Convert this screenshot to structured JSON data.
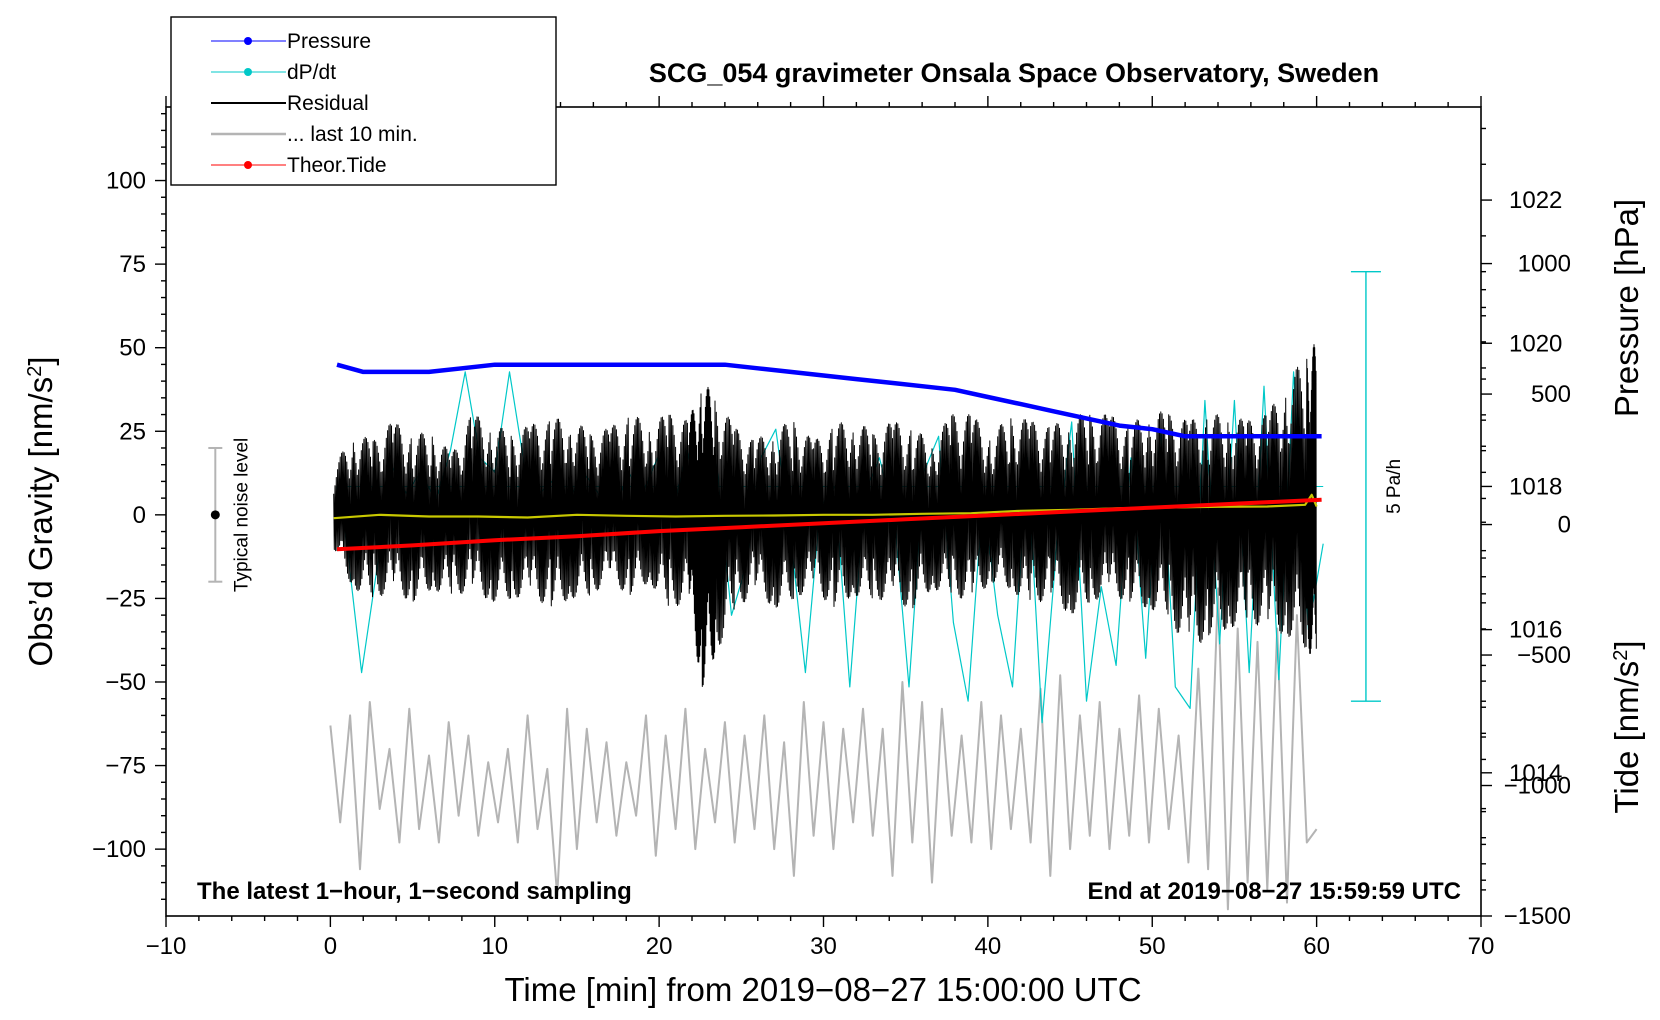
{
  "chart_data": {
    "type": "line",
    "title": "SCG_054 gravimeter Onsala Space Observatory, Sweden",
    "xlabel": "Time [min] from 2019−08−27 15:00:00 UTC",
    "ylabel_left": "Obs’d Gravity [nm/s²]",
    "ylabel_left_parts": {
      "base": "Obs’d Gravity [nm/s",
      "sup": "2",
      "close": "]"
    },
    "ylabel_right_pressure": "Pressure [hPa]",
    "ylabel_right_tide": "Tide [nm/s²]",
    "ylabel_right_tide_parts": {
      "base": "Tide [nm/s",
      "sup": "2",
      "close": "]"
    },
    "xlim": [
      -10,
      70
    ],
    "ylim": [
      -120,
      122
    ],
    "pressure_ylim": [
      1012.0,
      1023.3
    ],
    "tide_ylim": [
      -1500,
      1600
    ],
    "xticks": [
      -10,
      0,
      10,
      20,
      30,
      40,
      50,
      60,
      70
    ],
    "xtick_labels": [
      "−10",
      "0",
      "10",
      "20",
      "30",
      "40",
      "50",
      "60",
      "70"
    ],
    "yticks_left": [
      100,
      75,
      50,
      25,
      0,
      -25,
      -50,
      -75,
      -100
    ],
    "ytick_labels_left": [
      "100",
      "75",
      "50",
      "25",
      "0",
      "−25",
      "−50",
      "−75",
      "−100"
    ],
    "yticks_pressure": [
      1022,
      1020,
      1018,
      1016,
      1014
    ],
    "ytick_labels_pressure": [
      "1022",
      "1020",
      "1018",
      "1016",
      "1014"
    ],
    "yticks_tide": [
      1000,
      500,
      0,
      -500,
      -1000,
      -1500
    ],
    "ytick_labels_tide": [
      "1000",
      "500",
      "0",
      "−500",
      "−1000",
      "−1500"
    ],
    "legend_position": "top-left",
    "legend": [
      {
        "label": "Pressure",
        "color": "#0000ff",
        "marker": true,
        "width": 1
      },
      {
        "label": "dP/dt",
        "color": "#00c8c8",
        "marker": true,
        "width": 1
      },
      {
        "label": "Residual",
        "color": "#000000",
        "marker": false,
        "width": 2
      },
      {
        "label": "... last 10 min.",
        "color": "#b4b4b4",
        "marker": false,
        "width": 2.5
      },
      {
        "label": "Theor.Tide",
        "color": "#ff0000",
        "marker": true,
        "width": 1
      }
    ],
    "notes": {
      "bottom_left": "The latest 1−hour, 1−second sampling",
      "bottom_right": "End at 2019−08−27 15:59:59 UTC",
      "noise_level_label": "Typical noise level",
      "scale_bar_label": "5 Pa/h"
    },
    "noise_level": {
      "x": -7,
      "center": 0,
      "half_range": 20
    },
    "scale_bar": {
      "x": 63,
      "top_hpa": 1021.0,
      "bottom_hpa": 1015.0,
      "rate_pa_per_h": 5
    },
    "series": [
      {
        "name": "Pressure",
        "axis": "pressure",
        "color": "#0000ff",
        "x": [
          0.4,
          2,
          4,
          6,
          8,
          10,
          12,
          14,
          16,
          18,
          20,
          22,
          24,
          26,
          28,
          30,
          32,
          34,
          36,
          38,
          40,
          42,
          44,
          46,
          48,
          50,
          52,
          54,
          56,
          58,
          60.3
        ],
        "y": [
          1019.7,
          1019.6,
          1019.6,
          1019.6,
          1019.65,
          1019.7,
          1019.7,
          1019.7,
          1019.7,
          1019.7,
          1019.7,
          1019.7,
          1019.7,
          1019.65,
          1019.6,
          1019.55,
          1019.5,
          1019.45,
          1019.4,
          1019.35,
          1019.25,
          1019.15,
          1019.05,
          1018.95,
          1018.85,
          1018.8,
          1018.7,
          1018.7,
          1018.7,
          1018.7,
          1018.7
        ]
      },
      {
        "name": "dP/dt",
        "axis": "pressure",
        "color": "#00c8c8",
        "baseline": 1018.0,
        "x": [
          0.4,
          1.0,
          1.9,
          2.8,
          3.7,
          4.6,
          5.5,
          6.4,
          7.3,
          8.2,
          9.1,
          10.0,
          10.9,
          11.8,
          12.7,
          13.6,
          14.5,
          15.4,
          16.3,
          17.2,
          18.1,
          19.0,
          19.9,
          20.8,
          21.7,
          22.6,
          23.5,
          24.4,
          25.3,
          26.2,
          27.1,
          28.0,
          28.9,
          29.8,
          30.7,
          31.6,
          32.5,
          33.4,
          34.3,
          35.2,
          36.1,
          37.0,
          37.9,
          38.8,
          39.7,
          40.6,
          41.5,
          42.4,
          43.3,
          44.2,
          45.1,
          46.0,
          46.9,
          47.8,
          48.7,
          49.6,
          50.5,
          51.4,
          52.3,
          53.2,
          54.1,
          55.0,
          55.9,
          56.8,
          57.7,
          58.6,
          59.5,
          60.4
        ],
        "y": [
          1018.0,
          1017.2,
          1015.4,
          1016.8,
          1018.3,
          1017.9,
          1018.2,
          1017.8,
          1018.5,
          1019.6,
          1018.4,
          1018.2,
          1019.6,
          1018.3,
          1017.9,
          1018.1,
          1017.8,
          1018.2,
          1017.9,
          1017.6,
          1018.2,
          1017.9,
          1018.4,
          1017.6,
          1018.5,
          1017.5,
          1018.3,
          1016.2,
          1016.9,
          1018.4,
          1018.8,
          1017.3,
          1015.4,
          1017.7,
          1018.0,
          1015.2,
          1017.9,
          1018.4,
          1017.6,
          1015.2,
          1018.2,
          1018.7,
          1016.1,
          1015.0,
          1017.9,
          1016.2,
          1015.2,
          1018.4,
          1014.7,
          1017.2,
          1018.9,
          1015.0,
          1016.6,
          1015.5,
          1018.4,
          1015.6,
          1018.8,
          1015.2,
          1014.9,
          1019.2,
          1015.8,
          1019.2,
          1015.4,
          1019.4,
          1015.3,
          1019.6,
          1016.0,
          1017.2
        ]
      },
      {
        "name": "Residual",
        "axis": "gravity",
        "color": "#000000",
        "x": [
          0.2,
          1.4,
          2.6,
          3.8,
          5.0,
          6.2,
          7.4,
          8.6,
          9.8,
          11.0,
          12.2,
          13.4,
          14.6,
          15.8,
          17.0,
          18.2,
          19.4,
          20.6,
          21.8,
          22.6,
          23.4,
          24.6,
          25.8,
          27.0,
          28.2,
          29.4,
          30.6,
          31.8,
          33.0,
          34.2,
          35.4,
          36.6,
          37.8,
          39.0,
          40.2,
          41.4,
          42.6,
          43.8,
          45.0,
          46.2,
          47.4,
          48.6,
          49.8,
          51.0,
          52.2,
          53.4,
          54.6,
          55.8,
          57.0,
          58.2,
          59.4,
          60.0
        ],
        "y_max": [
          14,
          25,
          22,
          28,
          24,
          25,
          18,
          30,
          28,
          24,
          27,
          28,
          30,
          24,
          26,
          30,
          28,
          30,
          28,
          40,
          36,
          26,
          22,
          26,
          28,
          22,
          26,
          30,
          24,
          28,
          26,
          22,
          30,
          30,
          24,
          30,
          28,
          26,
          30,
          30,
          30,
          26,
          32,
          30,
          28,
          30,
          30,
          28,
          30,
          40,
          48,
          52
        ],
        "y_min": [
          -10,
          -22,
          -25,
          -23,
          -26,
          -22,
          -25,
          -22,
          -26,
          -25,
          -24,
          -28,
          -25,
          -24,
          -20,
          -24,
          -20,
          -28,
          -26,
          -52,
          -42,
          -30,
          -22,
          -28,
          -25,
          -22,
          -28,
          -24,
          -25,
          -26,
          -28,
          -22,
          -24,
          -26,
          -20,
          -22,
          -28,
          -24,
          -30,
          -26,
          -24,
          -26,
          -28,
          -30,
          -42,
          -36,
          -34,
          -32,
          -34,
          -36,
          -40,
          -45
        ]
      },
      {
        "name": "... last 10 min.",
        "axis": "gravity",
        "color": "#b4b4b4",
        "x": [
          0.0,
          0.6,
          1.2,
          1.8,
          2.4,
          3.0,
          3.6,
          4.2,
          4.8,
          5.4,
          6.0,
          6.6,
          7.2,
          7.8,
          8.4,
          9.0,
          9.6,
          10.2,
          10.8,
          11.4,
          12.0,
          12.6,
          13.2,
          13.8,
          14.4,
          15.0,
          15.6,
          16.2,
          16.8,
          17.4,
          18.0,
          18.6,
          19.2,
          19.8,
          20.4,
          21.0,
          21.6,
          22.2,
          22.8,
          23.4,
          24.0,
          24.6,
          25.2,
          25.8,
          26.4,
          27.0,
          27.6,
          28.2,
          28.8,
          29.4,
          30.0,
          30.6,
          31.2,
          31.8,
          32.4,
          33.0,
          33.6,
          34.2,
          34.8,
          35.4,
          36.0,
          36.6,
          37.2,
          37.8,
          38.4,
          39.0,
          39.6,
          40.2,
          40.8,
          41.4,
          42.0,
          42.6,
          43.2,
          43.8,
          44.4,
          45.0,
          45.6,
          46.2,
          46.8,
          47.4,
          48.0,
          48.6,
          49.2,
          49.8,
          50.4,
          51.0,
          51.6,
          52.2,
          52.8,
          53.4,
          54.0,
          54.6,
          55.2,
          55.8,
          56.4,
          57.0,
          57.6,
          58.2,
          58.8,
          59.4,
          60.0
        ],
        "y": [
          -63,
          -92,
          -60,
          -106,
          -56,
          -88,
          -70,
          -98,
          -58,
          -94,
          -72,
          -98,
          -62,
          -90,
          -66,
          -96,
          -74,
          -92,
          -70,
          -98,
          -60,
          -94,
          -76,
          -114,
          -58,
          -100,
          -64,
          -92,
          -68,
          -96,
          -74,
          -90,
          -60,
          -102,
          -66,
          -94,
          -58,
          -100,
          -70,
          -92,
          -62,
          -98,
          -66,
          -94,
          -60,
          -100,
          -68,
          -108,
          -56,
          -96,
          -62,
          -100,
          -64,
          -92,
          -58,
          -96,
          -64,
          -108,
          -50,
          -98,
          -56,
          -110,
          -58,
          -96,
          -66,
          -98,
          -56,
          -100,
          -60,
          -94,
          -64,
          -98,
          -52,
          -108,
          -48,
          -100,
          -60,
          -96,
          -56,
          -100,
          -64,
          -96,
          -54,
          -98,
          -58,
          -94,
          -66,
          -104,
          -46,
          -106,
          -22,
          -118,
          -34,
          -110,
          -38,
          -112,
          -34,
          -116,
          -30,
          -98,
          -94
        ]
      },
      {
        "name": "Residual smoothed",
        "axis": "gravity",
        "color": "#c8c800",
        "x": [
          0.2,
          3,
          6,
          9,
          12,
          15,
          18,
          21,
          24,
          27,
          30,
          33,
          36,
          39,
          42,
          45,
          48,
          51,
          54,
          57,
          59.3,
          59.7,
          60.0
        ],
        "y": [
          -1,
          0,
          -0.5,
          -0.5,
          -0.8,
          0,
          -0.3,
          -0.5,
          -0.3,
          -0.2,
          0,
          0,
          0.3,
          0.5,
          1.2,
          1.5,
          2,
          2.2,
          2.4,
          2.5,
          3,
          6,
          2.5
        ]
      },
      {
        "name": "Theor.Tide",
        "axis": "tide",
        "color": "#ff0000",
        "x": [
          0.4,
          5,
          10,
          15,
          20,
          25,
          30,
          35,
          40,
          45,
          50,
          55,
          60.3
        ],
        "y": [
          -95,
          -80,
          -60,
          -45,
          -25,
          -10,
          5,
          20,
          35,
          50,
          65,
          80,
          95
        ]
      }
    ]
  }
}
